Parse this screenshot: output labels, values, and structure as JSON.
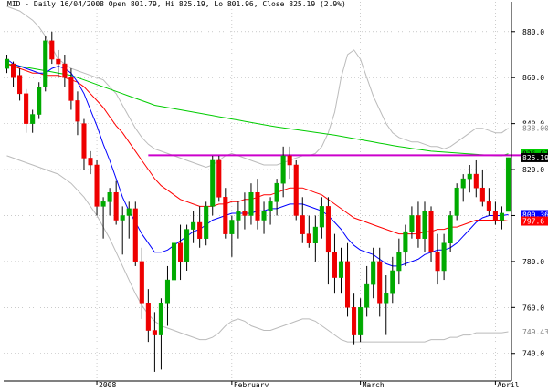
{
  "header": {
    "title": "MID - Daily 16/04/2008 Open 801.79, Hi 825.19, Lo 801.96, Close 825.19 (2.9%)"
  },
  "chart_data": {
    "type": "candlestick",
    "ylim": [
      728,
      893
    ],
    "y_ticks": [
      {
        "value": 740,
        "label": "740.0"
      },
      {
        "value": 760,
        "label": "760.0"
      },
      {
        "value": 780,
        "label": "780.0"
      },
      {
        "value": 800,
        "label": "800.0"
      },
      {
        "value": 820,
        "label": "820.0"
      },
      {
        "value": 840,
        "label": "840.0"
      },
      {
        "value": 860,
        "label": "860.0"
      },
      {
        "value": 880,
        "label": "880.0"
      }
    ],
    "x_labels": [
      {
        "index": 14,
        "label": "2008"
      },
      {
        "index": 35,
        "label": "February"
      },
      {
        "index": 55,
        "label": "March"
      },
      {
        "index": 76,
        "label": "April"
      }
    ],
    "value_labels": [
      {
        "value": 838.0,
        "label": "838.003",
        "color": "#ffffff",
        "text_color": "#7f7f7f"
      },
      {
        "value": 826.9,
        "label": "826.879",
        "color": "#00cc00",
        "text_color": "#000000"
      },
      {
        "value": 825.2,
        "label": "825.19",
        "color": "#000000",
        "text_color": "#ffffff"
      },
      {
        "value": 800.4,
        "label": "800.366",
        "color": "#0000ff",
        "text_color": "#ffffff"
      },
      {
        "value": 797.6,
        "label": "797.6",
        "color": "#ff0000",
        "text_color": "#ffffff"
      },
      {
        "value": 749.4,
        "label": "749.439",
        "color": "#ffffff",
        "text_color": "#7f7f7f"
      }
    ],
    "resistance_line": {
      "value": 826.2,
      "from_index": 22,
      "to_index": 85,
      "color": "#cc00cc"
    },
    "colors": {
      "up": "#00aa00",
      "down": "#ee0000",
      "ma_fast": "#0000ff",
      "ma_mid": "#ff0000",
      "ma_slow": "#00cc00",
      "bands": "#bbbbbb"
    },
    "candles": [
      [
        864,
        870,
        862,
        868
      ],
      [
        866,
        867,
        856,
        860
      ],
      [
        861,
        864,
        850,
        853
      ],
      [
        853,
        855,
        836,
        840
      ],
      [
        840,
        846,
        836,
        844
      ],
      [
        844,
        858,
        842,
        856
      ],
      [
        856,
        878,
        854,
        876
      ],
      [
        876,
        880,
        866,
        868
      ],
      [
        868,
        872,
        860,
        866
      ],
      [
        866,
        870,
        856,
        860
      ],
      [
        860,
        864,
        846,
        850
      ],
      [
        850,
        854,
        835,
        841
      ],
      [
        840,
        842,
        820,
        825
      ],
      [
        825,
        828,
        818,
        822
      ],
      [
        822,
        824,
        800,
        804
      ],
      [
        804,
        808,
        790,
        806
      ],
      [
        806,
        812,
        800,
        810
      ],
      [
        810,
        815,
        796,
        798
      ],
      [
        798,
        804,
        783,
        800
      ],
      [
        800,
        806,
        790,
        803
      ],
      [
        803,
        806,
        778,
        780
      ],
      [
        780,
        786,
        755,
        762
      ],
      [
        762,
        768,
        745,
        750
      ],
      [
        750,
        758,
        732,
        748
      ],
      [
        748,
        764,
        733,
        762
      ],
      [
        762,
        778,
        752,
        772
      ],
      [
        772,
        790,
        764,
        788
      ],
      [
        788,
        796,
        772,
        780
      ],
      [
        780,
        796,
        776,
        794
      ],
      [
        794,
        802,
        788,
        797
      ],
      [
        797,
        804,
        786,
        790
      ],
      [
        790,
        806,
        787,
        804
      ],
      [
        804,
        826,
        800,
        824
      ],
      [
        824,
        826,
        806,
        808
      ],
      [
        808,
        812,
        790,
        792
      ],
      [
        792,
        800,
        782,
        798
      ],
      [
        798,
        806,
        790,
        802
      ],
      [
        802,
        810,
        794,
        800
      ],
      [
        800,
        814,
        796,
        810
      ],
      [
        810,
        816,
        794,
        798
      ],
      [
        798,
        806,
        792,
        802
      ],
      [
        802,
        808,
        796,
        806
      ],
      [
        806,
        816,
        800,
        814
      ],
      [
        814,
        830,
        808,
        826
      ],
      [
        826,
        830,
        816,
        822
      ],
      [
        822,
        824,
        798,
        800
      ],
      [
        800,
        808,
        788,
        792
      ],
      [
        792,
        800,
        786,
        788
      ],
      [
        788,
        800,
        780,
        795
      ],
      [
        795,
        808,
        790,
        804
      ],
      [
        804,
        808,
        770,
        784
      ],
      [
        784,
        792,
        766,
        773
      ],
      [
        773,
        786,
        766,
        780
      ],
      [
        780,
        788,
        756,
        760
      ],
      [
        760,
        766,
        744,
        748
      ],
      [
        748,
        764,
        745,
        760
      ],
      [
        760,
        778,
        756,
        770
      ],
      [
        770,
        786,
        764,
        780
      ],
      [
        780,
        786,
        756,
        762
      ],
      [
        762,
        774,
        748,
        766
      ],
      [
        766,
        782,
        762,
        776
      ],
      [
        776,
        790,
        770,
        784
      ],
      [
        784,
        796,
        778,
        793
      ],
      [
        793,
        804,
        790,
        800
      ],
      [
        800,
        806,
        786,
        790
      ],
      [
        790,
        806,
        784,
        802
      ],
      [
        802,
        804,
        780,
        784
      ],
      [
        784,
        792,
        770,
        776
      ],
      [
        776,
        792,
        772,
        788
      ],
      [
        788,
        802,
        784,
        800
      ],
      [
        800,
        814,
        798,
        812
      ],
      [
        812,
        818,
        806,
        816
      ],
      [
        816,
        822,
        810,
        818
      ],
      [
        818,
        824,
        808,
        812
      ],
      [
        812,
        820,
        804,
        806
      ],
      [
        806,
        812,
        800,
        802
      ],
      [
        802,
        806,
        796,
        798
      ],
      [
        798,
        804,
        794,
        801
      ],
      [
        801.79,
        825.19,
        801.96,
        825.19
      ]
    ],
    "ma_fast": [
      868,
      866,
      865,
      864,
      863,
      862,
      862,
      864,
      865,
      864,
      862,
      858,
      853,
      846,
      839,
      831,
      824,
      816,
      808,
      802,
      797,
      792,
      788,
      784,
      784,
      785,
      787,
      789,
      791,
      793,
      794,
      796,
      798,
      799,
      800,
      801,
      801,
      801,
      801,
      802,
      802,
      803,
      803,
      804,
      805,
      805,
      805,
      804,
      803,
      802,
      800,
      797,
      794,
      790,
      787,
      785,
      784,
      783,
      781,
      779,
      778,
      778,
      779,
      780,
      781,
      783,
      784,
      785,
      785,
      786,
      788,
      791,
      794,
      797,
      799,
      800,
      800,
      800,
      800.4
    ],
    "ma_mid": [
      866,
      865,
      864,
      863,
      862,
      862,
      861,
      861,
      861,
      860,
      859,
      858,
      856,
      853,
      850,
      847,
      843,
      839,
      836,
      832,
      828,
      824,
      820,
      816,
      813,
      811,
      809,
      807,
      806,
      805,
      804,
      804,
      804,
      805,
      805,
      806,
      806,
      807,
      807,
      808,
      809,
      809,
      810,
      811,
      812,
      812,
      812,
      811,
      810,
      809,
      807,
      805,
      803,
      801,
      799,
      798,
      797,
      796,
      795,
      794,
      793,
      792,
      792,
      792,
      792,
      793,
      793,
      794,
      794,
      795,
      795,
      796,
      797,
      798,
      798,
      798,
      798,
      798,
      797.6
    ],
    "ma_slow": [
      866,
      865.5,
      865,
      864.5,
      864,
      863.5,
      863,
      862.5,
      862,
      861.5,
      861,
      860,
      859,
      858,
      857,
      856,
      855,
      854,
      853,
      852,
      851,
      850,
      849,
      848,
      847.5,
      847,
      846.5,
      846,
      845.5,
      845,
      844.5,
      844,
      843.5,
      843,
      842.5,
      842,
      841.5,
      841,
      840.5,
      840,
      839.5,
      839,
      838.6,
      838.2,
      837.8,
      837.4,
      837,
      836.6,
      836.2,
      835.8,
      835.4,
      835,
      834.5,
      834,
      833.5,
      833,
      832.5,
      832,
      831.5,
      831,
      830.5,
      830,
      829.6,
      829.2,
      828.8,
      828.4,
      828,
      827.8,
      827.6,
      827.4,
      827.2,
      827,
      826.8,
      826.6,
      826.4,
      826.2,
      826.1,
      826,
      826.9
    ],
    "band_upper": [
      891,
      890,
      889,
      887,
      885,
      882,
      878,
      873,
      868,
      866,
      864,
      863,
      862,
      861,
      860,
      859,
      856,
      853,
      848,
      843,
      838,
      834,
      831,
      829,
      828,
      827,
      826,
      825,
      824,
      823,
      822,
      821,
      822,
      824,
      826,
      827,
      826,
      825,
      824,
      823,
      822,
      822,
      822,
      823,
      824,
      825,
      826,
      826,
      827,
      830,
      836,
      845,
      860,
      870,
      872,
      868,
      860,
      852,
      846,
      840,
      836,
      834,
      833,
      832,
      832,
      831,
      830,
      830,
      829,
      830,
      832,
      834,
      836,
      838,
      838,
      837,
      836,
      836,
      838
    ],
    "band_lower": [
      826,
      825,
      824,
      823,
      822,
      821,
      820,
      819,
      818,
      816,
      814,
      811,
      808,
      804,
      800,
      795,
      790,
      784,
      778,
      772,
      766,
      761,
      757,
      754,
      752,
      751,
      750,
      749,
      748,
      747,
      746,
      746,
      747,
      749,
      752,
      754,
      755,
      754,
      752,
      751,
      750,
      750,
      751,
      752,
      753,
      754,
      755,
      755,
      754,
      752,
      750,
      748,
      746,
      745,
      745,
      745,
      745,
      745,
      745,
      745,
      745,
      745,
      745,
      745,
      745,
      745,
      746,
      746,
      746,
      747,
      747,
      748,
      748,
      749,
      749,
      749,
      749,
      749,
      749.4
    ]
  }
}
